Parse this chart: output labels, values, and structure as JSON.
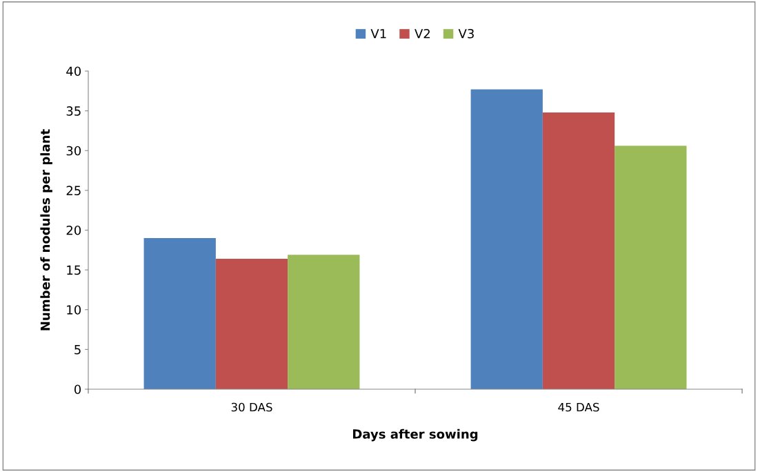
{
  "chart_data": {
    "type": "bar",
    "xlabel": "Days after sowing",
    "ylabel": "Number of nodules per plant",
    "categories": [
      "30 DAS",
      "45 DAS"
    ],
    "series": [
      {
        "name": "V1",
        "color": "#4f81bd",
        "values": [
          19.0,
          37.7
        ]
      },
      {
        "name": "V2",
        "color": "#c0504d",
        "values": [
          16.4,
          34.8
        ]
      },
      {
        "name": "V3",
        "color": "#9bbb59",
        "values": [
          16.9,
          30.6
        ]
      }
    ],
    "ylim": [
      0,
      40
    ],
    "yticks": [
      0,
      5,
      10,
      15,
      20,
      25,
      30,
      35,
      40
    ],
    "grid": false,
    "legend": "top"
  }
}
